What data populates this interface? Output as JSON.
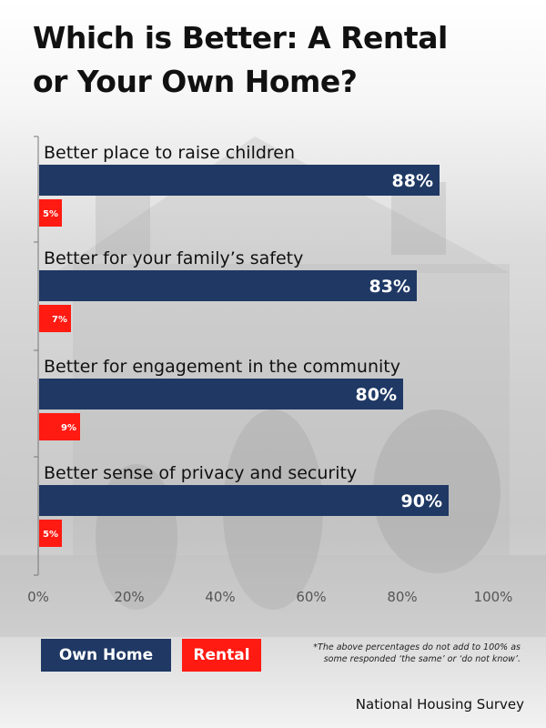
{
  "title_lines": [
    "Which is Better: A Rental",
    "or Your Own Home?"
  ],
  "chart_data": {
    "type": "bar",
    "orientation": "horizontal",
    "categories": [
      "Better place to raise children",
      "Better for your family’s safety",
      "Better for engagement in the community",
      "Better sense of privacy and security"
    ],
    "series": [
      {
        "name": "Own Home",
        "values": [
          88,
          83,
          80,
          90
        ],
        "color": "#1f3864"
      },
      {
        "name": "Rental",
        "values": [
          5,
          7,
          9,
          5
        ],
        "color": "#ff1a12"
      }
    ],
    "value_labels": {
      "Own Home": [
        "88%",
        "83%",
        "80%",
        "90%"
      ],
      "Rental": [
        "5%",
        "7%",
        "9%",
        "5%"
      ]
    },
    "x_ticks": [
      "0%",
      "20%",
      "40%",
      "60%",
      "80%",
      "100%"
    ],
    "xlim": [
      0,
      100
    ],
    "grid": false,
    "legend_position": "bottom-left"
  },
  "legend": {
    "own_label": "Own Home",
    "rental_label": "Rental"
  },
  "footnote_lines": [
    "*The above percentages do not add to 100% as",
    "some responded ‘the same’ or  ‘do not know’."
  ],
  "source": "National Housing Survey"
}
